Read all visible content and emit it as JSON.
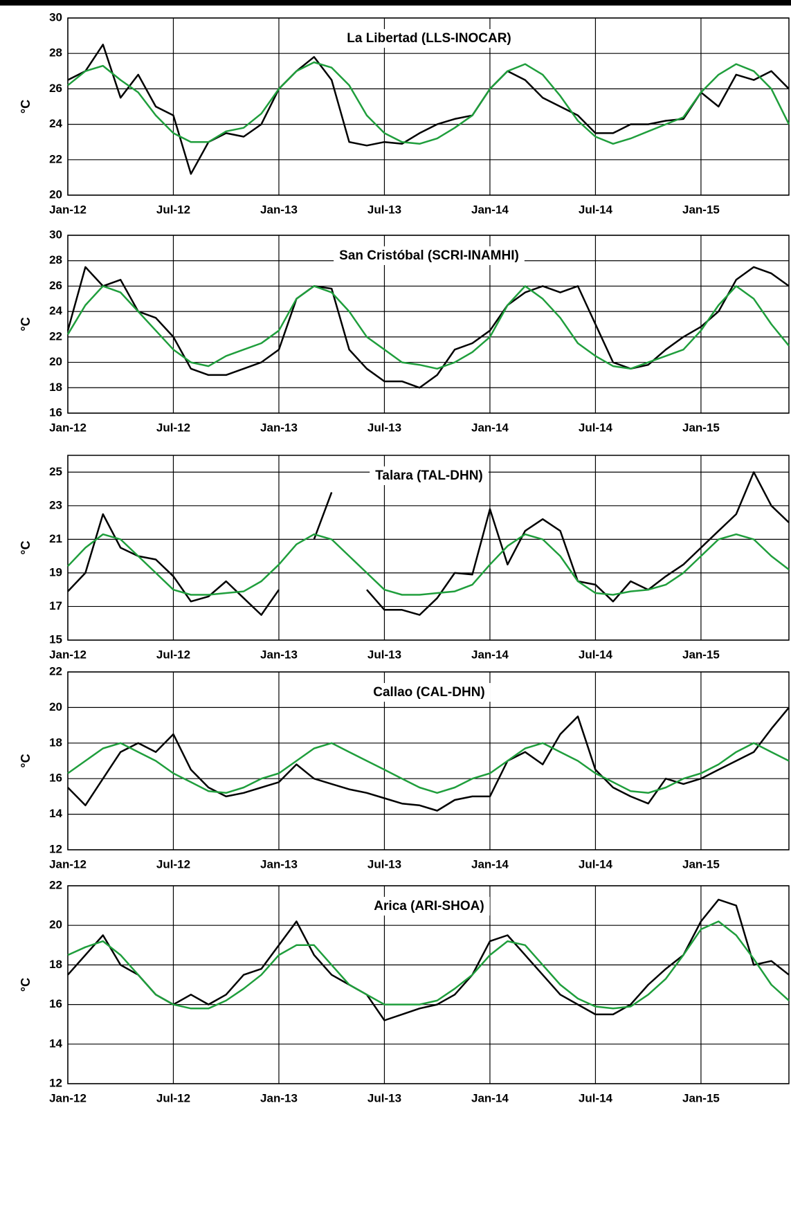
{
  "chart_data": [
    {
      "type": "line",
      "title": "La Libertad (LLS-INOCAR)",
      "y_label": "°C",
      "categories": [
        "Jan-12",
        null,
        null,
        null,
        null,
        null,
        "Jul-12",
        null,
        null,
        null,
        null,
        null,
        "Jan-13",
        null,
        null,
        null,
        null,
        null,
        "Jul-13",
        null,
        null,
        null,
        null,
        null,
        "Jan-14",
        null,
        null,
        null,
        null,
        null,
        "Jul-14",
        null,
        null,
        null,
        null,
        null,
        "Jan-15",
        null,
        null,
        null,
        null,
        null
      ],
      "ylim": [
        20,
        30
      ],
      "yticks": [
        20,
        22,
        24,
        26,
        28,
        30
      ],
      "grid": true,
      "series": [
        {
          "color": "#000000",
          "values": [
            26.5,
            27,
            28.5,
            25.5,
            26.8,
            25.0,
            24.5,
            21.2,
            23,
            23.5,
            23.3,
            24,
            26,
            27,
            27.8,
            26.5,
            23,
            22.8,
            23,
            22.9,
            23.5,
            24,
            24.3,
            24.5,
            26,
            27,
            26.5,
            25.5,
            25,
            24.5,
            23.5,
            23.5,
            24,
            24,
            24.2,
            24.3,
            25.8,
            25,
            26.8,
            26.5,
            27,
            26
          ]
        },
        {
          "color": "#1f9e3c",
          "values": [
            26.2,
            27,
            27.3,
            26.5,
            25.8,
            24.5,
            23.5,
            23,
            23,
            23.6,
            23.8,
            24.6,
            26,
            27,
            27.5,
            27.2,
            26.2,
            24.5,
            23.5,
            23,
            22.9,
            23.2,
            23.8,
            24.5,
            26,
            27,
            27.4,
            26.8,
            25.6,
            24.2,
            23.3,
            22.9,
            23.2,
            23.6,
            24,
            24.4,
            25.8,
            26.8,
            27.4,
            27,
            26,
            24
          ]
        }
      ]
    },
    {
      "type": "line",
      "title": "San Cristóbal (SCRI-INAMHI)",
      "y_label": "°C",
      "categories": [
        "Jan-12",
        null,
        null,
        null,
        null,
        null,
        "Jul-12",
        null,
        null,
        null,
        null,
        null,
        "Jan-13",
        null,
        null,
        null,
        null,
        null,
        "Jul-13",
        null,
        null,
        null,
        null,
        null,
        "Jan-14",
        null,
        null,
        null,
        null,
        null,
        "Jul-14",
        null,
        null,
        null,
        null,
        null,
        "Jan-15",
        null,
        null,
        null,
        null,
        null
      ],
      "ylim": [
        16,
        30
      ],
      "yticks": [
        16,
        18,
        20,
        22,
        24,
        26,
        28,
        30
      ],
      "grid": true,
      "series": [
        {
          "color": "#000000",
          "values": [
            22.5,
            27.5,
            26,
            26.5,
            24,
            23.5,
            22,
            19.5,
            19,
            19,
            19.5,
            20,
            21,
            25,
            26,
            25.8,
            21,
            19.5,
            18.5,
            18.5,
            18,
            19,
            21,
            21.5,
            22.5,
            24.5,
            25.5,
            26,
            25.5,
            26,
            23,
            20,
            19.5,
            19.8,
            21,
            22,
            22.8,
            24,
            26.5,
            27.5,
            27,
            26
          ]
        },
        {
          "color": "#1f9e3c",
          "values": [
            22.2,
            24.5,
            26,
            25.5,
            24,
            22.5,
            21,
            20,
            19.7,
            20.5,
            21,
            21.5,
            22.5,
            25,
            26,
            25.5,
            24,
            22,
            21,
            20,
            19.8,
            19.5,
            20,
            20.8,
            22,
            24.5,
            26,
            25,
            23.5,
            21.5,
            20.5,
            19.7,
            19.5,
            20,
            20.5,
            21,
            22.5,
            24.5,
            26,
            25,
            23,
            21.3
          ]
        }
      ]
    },
    {
      "type": "line",
      "title": "Talara (TAL-DHN)",
      "y_label": "°C",
      "categories": [
        "Jan-12",
        null,
        null,
        null,
        null,
        null,
        "Jul-12",
        null,
        null,
        null,
        null,
        null,
        "Jan-13",
        null,
        null,
        null,
        null,
        null,
        "Jul-13",
        null,
        null,
        null,
        null,
        null,
        "Jan-14",
        null,
        null,
        null,
        null,
        null,
        "Jul-14",
        null,
        null,
        null,
        null,
        null,
        "Jan-15",
        null,
        null,
        null,
        null,
        null
      ],
      "ylim": [
        15,
        26
      ],
      "yticks": [
        15,
        17,
        19,
        21,
        23,
        25
      ],
      "grid": true,
      "series": [
        {
          "color": "#000000",
          "values": [
            17.9,
            19,
            22.5,
            20.5,
            20,
            19.8,
            18.8,
            17.3,
            17.6,
            18.5,
            17.5,
            16.5,
            18,
            null,
            21,
            23.8,
            null,
            18,
            16.8,
            16.8,
            16.5,
            17.5,
            19,
            18.9,
            22.8,
            19.5,
            21.5,
            22.2,
            21.5,
            18.5,
            18.3,
            17.3,
            18.5,
            18,
            18.8,
            19.5,
            20.5,
            21.5,
            22.5,
            25,
            23,
            22
          ]
        },
        {
          "color": "#1f9e3c",
          "values": [
            19.4,
            20.5,
            21.3,
            21,
            20,
            19,
            18,
            17.7,
            17.7,
            17.8,
            17.9,
            18.5,
            19.5,
            20.7,
            21.3,
            21,
            20,
            19,
            18,
            17.7,
            17.7,
            17.8,
            17.9,
            18.3,
            19.5,
            20.6,
            21.3,
            21,
            20,
            18.5,
            17.8,
            17.7,
            17.9,
            18,
            18.3,
            19,
            20,
            21,
            21.3,
            21,
            20,
            19.2
          ]
        }
      ]
    },
    {
      "type": "line",
      "title": "Callao (CAL-DHN)",
      "y_label": "°C",
      "categories": [
        "Jan-12",
        null,
        null,
        null,
        null,
        null,
        "Jul-12",
        null,
        null,
        null,
        null,
        null,
        "Jan-13",
        null,
        null,
        null,
        null,
        null,
        "Jul-13",
        null,
        null,
        null,
        null,
        null,
        "Jan-14",
        null,
        null,
        null,
        null,
        null,
        "Jul-14",
        null,
        null,
        null,
        null,
        null,
        "Jan-15",
        null,
        null,
        null,
        null,
        null
      ],
      "ylim": [
        12,
        22
      ],
      "yticks": [
        12,
        14,
        16,
        18,
        20,
        22
      ],
      "grid": true,
      "series": [
        {
          "color": "#000000",
          "values": [
            15.5,
            14.5,
            16,
            17.5,
            18,
            17.5,
            18.5,
            16.5,
            15.5,
            15,
            15.2,
            15.5,
            15.8,
            16.8,
            16,
            15.7,
            15.4,
            15.2,
            14.9,
            14.6,
            14.5,
            14.2,
            14.8,
            15,
            15,
            17,
            17.5,
            16.8,
            18.5,
            19.5,
            16.5,
            15.5,
            15,
            14.6,
            16,
            15.7,
            16,
            16.5,
            17,
            17.5,
            18.8,
            20
          ]
        },
        {
          "color": "#1f9e3c",
          "values": [
            16.3,
            17,
            17.7,
            18,
            17.5,
            17,
            16.3,
            15.8,
            15.3,
            15.2,
            15.5,
            16,
            16.3,
            17,
            17.7,
            18,
            17.5,
            17,
            16.5,
            16,
            15.5,
            15.2,
            15.5,
            16,
            16.3,
            17,
            17.7,
            18,
            17.5,
            17,
            16.3,
            15.8,
            15.3,
            15.2,
            15.5,
            16,
            16.3,
            16.8,
            17.5,
            18,
            17.5,
            17
          ]
        }
      ]
    },
    {
      "type": "line",
      "title": "Arica (ARI-SHOA)",
      "y_label": "°C",
      "categories": [
        "Jan-12",
        null,
        null,
        null,
        null,
        null,
        "Jul-12",
        null,
        null,
        null,
        null,
        null,
        "Jan-13",
        null,
        null,
        null,
        null,
        null,
        "Jul-13",
        null,
        null,
        null,
        null,
        null,
        "Jan-14",
        null,
        null,
        null,
        null,
        null,
        "Jul-14",
        null,
        null,
        null,
        null,
        null,
        "Jan-15",
        null,
        null,
        null,
        null,
        null
      ],
      "ylim": [
        12,
        22
      ],
      "yticks": [
        12,
        14,
        16,
        18,
        20,
        22
      ],
      "grid": true,
      "series": [
        {
          "color": "#000000",
          "values": [
            17.5,
            18.5,
            19.5,
            18,
            17.5,
            16.5,
            16,
            16.5,
            16,
            16.5,
            17.5,
            17.8,
            19,
            20.2,
            18.5,
            17.5,
            17,
            16.5,
            15.2,
            15.5,
            15.8,
            16,
            16.5,
            17.5,
            19.2,
            19.5,
            18.5,
            17.5,
            16.5,
            16,
            15.5,
            15.5,
            16,
            17,
            17.8,
            18.5,
            20.2,
            21.3,
            21,
            18,
            18.2,
            17.5
          ]
        },
        {
          "color": "#1f9e3c",
          "values": [
            18.5,
            18.9,
            19.2,
            18.5,
            17.5,
            16.5,
            16,
            15.8,
            15.8,
            16.2,
            16.8,
            17.5,
            18.5,
            19,
            19,
            18,
            17,
            16.5,
            16,
            16,
            16,
            16.2,
            16.8,
            17.5,
            18.5,
            19.2,
            19,
            18,
            17,
            16.3,
            15.9,
            15.8,
            15.9,
            16.5,
            17.3,
            18.5,
            19.8,
            20.2,
            19.5,
            18.3,
            17,
            16.2
          ]
        }
      ]
    }
  ]
}
